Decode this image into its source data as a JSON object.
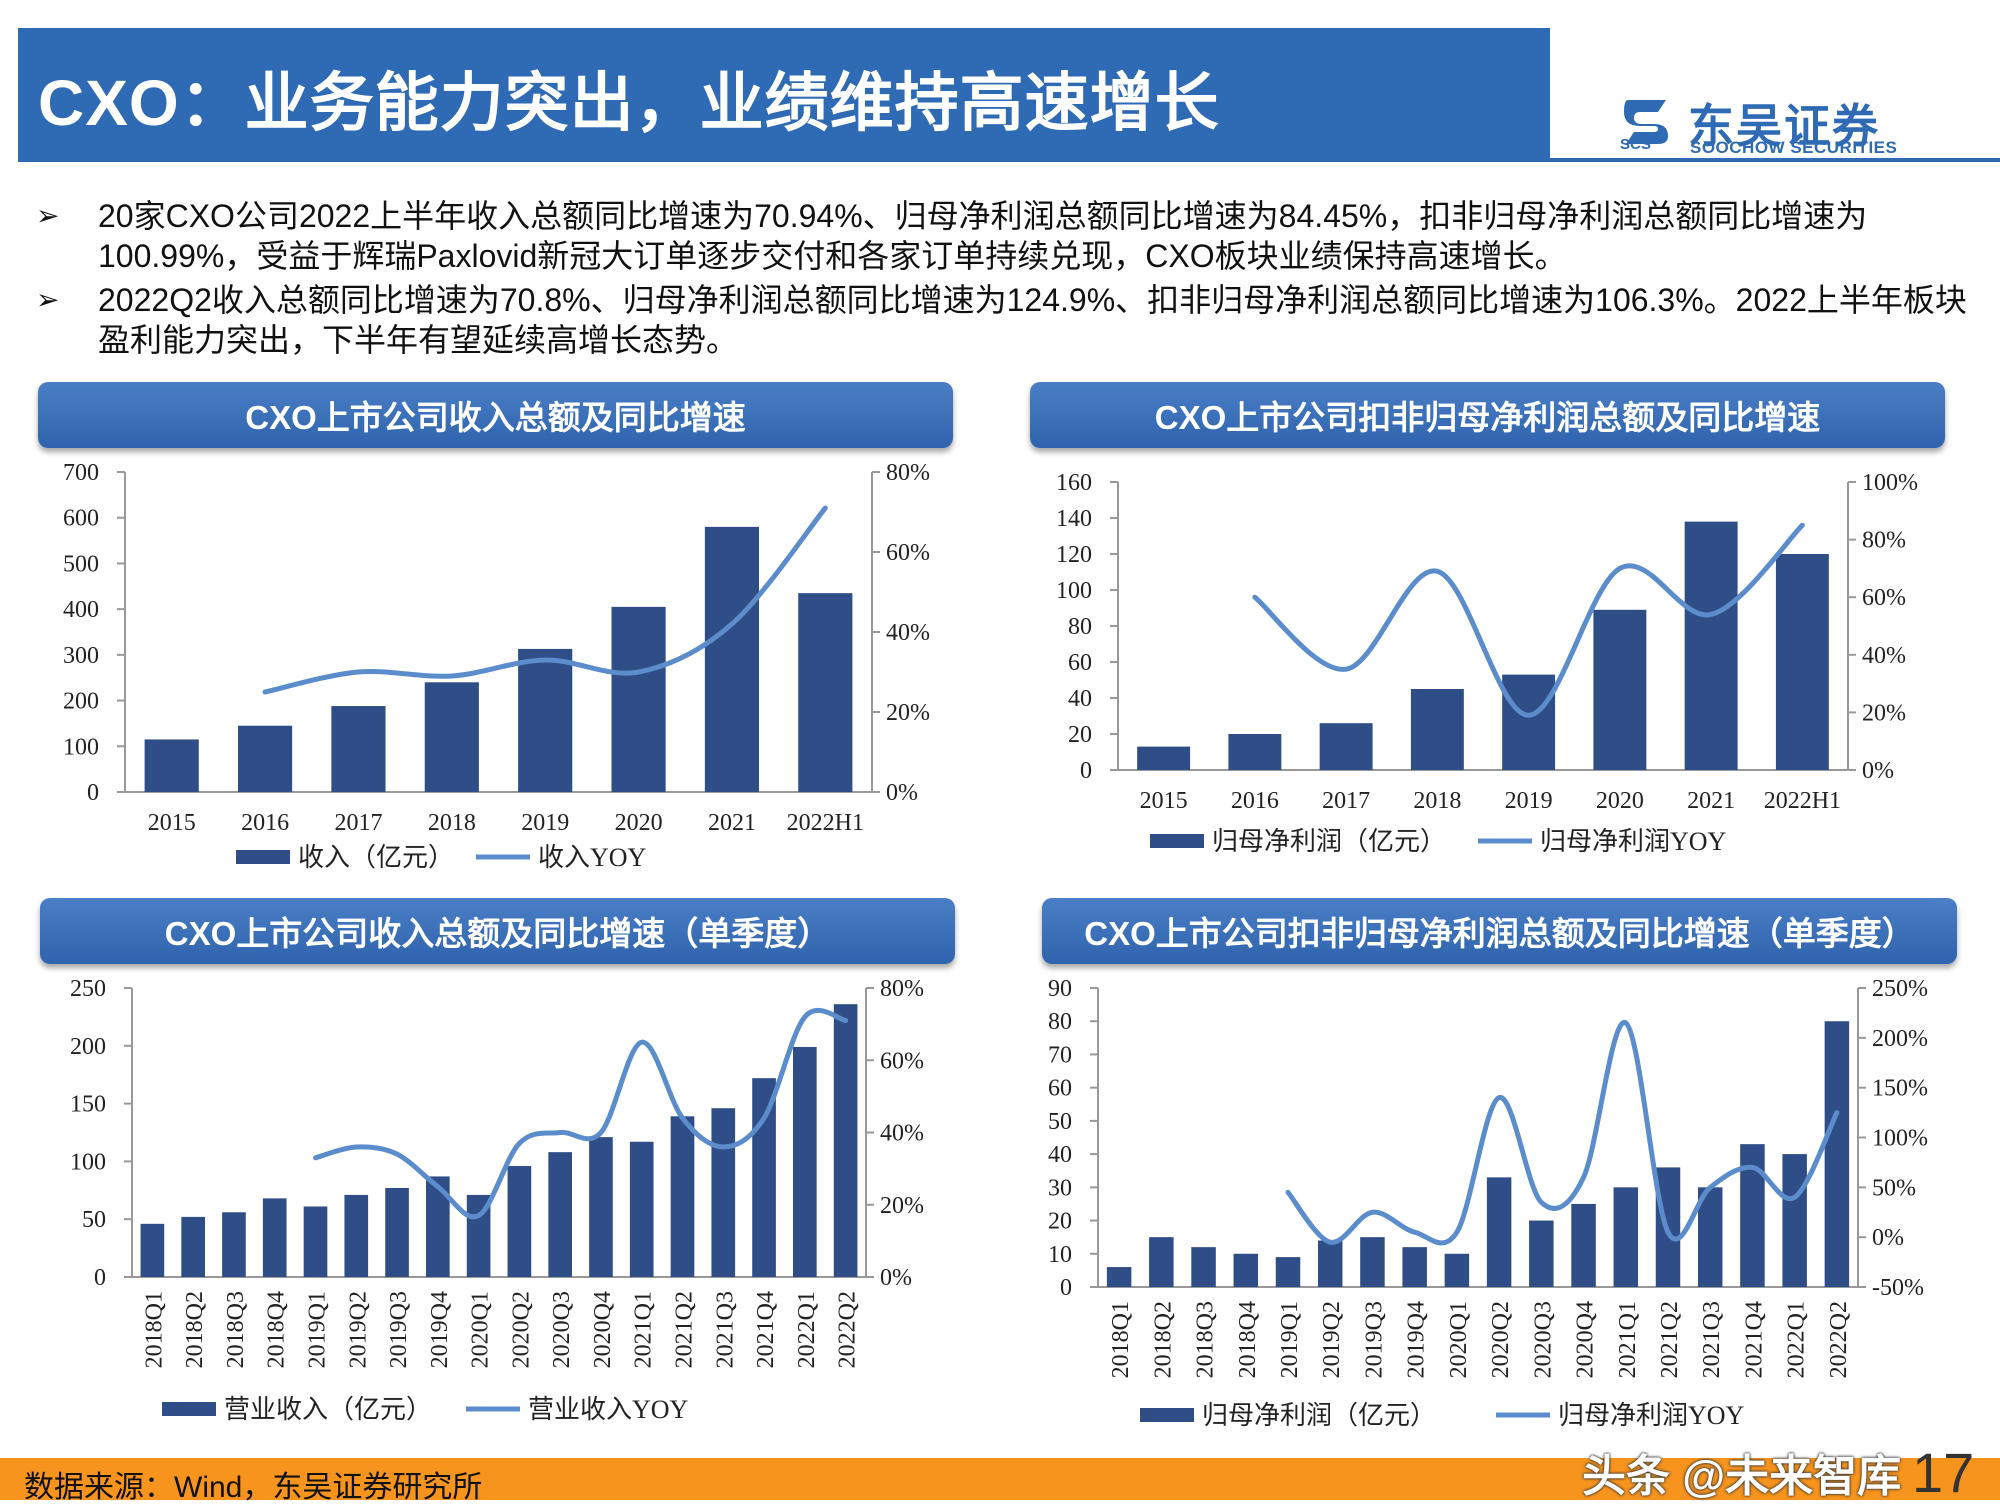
{
  "page": {
    "title": "CXO：业务能力突出，业绩维持高速增长",
    "logo_cn": "东吴证券",
    "logo_en": "SOOCHOW SECURITIES",
    "logo_mark": "SCS",
    "bullets": [
      "20家CXO公司2022上半年收入总额同比增速为70.94%、归母净利润总额同比增速为84.45%，扣非归母净利润总额同比增速为100.99%，受益于辉瑞Paxlovid新冠大订单逐步交付和各家订单持续兑现，CXO板块业绩保持高速增长。",
      "2022Q2收入总额同比增速为70.8%、归母净利润总额同比增速为124.9%、扣非归母净利润总额同比增速为106.3%。2022上半年板块盈利能力突出，下半年有望延续高增长态势。"
    ],
    "bullet_icon": "arrow-bullet-icon",
    "source": "数据来源：Wind，东吴证券研究所",
    "watermark": "头条 @未来智库",
    "page_number": "17",
    "colors": {
      "accent": "#2f6ab5",
      "bar": "#2f4d86",
      "line": "#5b8ccb",
      "footer": "#f7941d"
    }
  },
  "chart_data": [
    {
      "type": "bar",
      "title": "CXO上市公司收入总额及同比增速",
      "categories": [
        "2015",
        "2016",
        "2017",
        "2018",
        "2019",
        "2020",
        "2021",
        "2022H1"
      ],
      "series": [
        {
          "name": "收入（亿元）",
          "axis": "left",
          "type": "bar",
          "values": [
            115,
            145,
            188,
            240,
            313,
            405,
            580,
            435
          ]
        },
        {
          "name": "收入YOY",
          "axis": "right",
          "type": "line",
          "values": [
            null,
            0.25,
            0.3,
            0.29,
            0.33,
            0.3,
            0.42,
            0.71
          ]
        }
      ],
      "ylim_left": [
        0,
        700
      ],
      "yticks_left": [
        "0",
        "100",
        "200",
        "300",
        "400",
        "500",
        "600",
        "700"
      ],
      "ylim_right": [
        0,
        0.8
      ],
      "yticks_right": [
        "0%",
        "20%",
        "40%",
        "60%",
        "80%"
      ],
      "legend_position": "bottom"
    },
    {
      "type": "bar",
      "title": "CXO上市公司扣非归母净利润总额及同比增速",
      "categories": [
        "2015",
        "2016",
        "2017",
        "2018",
        "2019",
        "2020",
        "2021",
        "2022H1"
      ],
      "series": [
        {
          "name": "归母净利润（亿元）",
          "axis": "left",
          "type": "bar",
          "values": [
            13,
            20,
            26,
            45,
            53,
            89,
            138,
            120
          ]
        },
        {
          "name": "归母净利润YOY",
          "axis": "right",
          "type": "line",
          "values": [
            null,
            0.6,
            0.35,
            0.69,
            0.19,
            0.7,
            0.54,
            0.85
          ]
        }
      ],
      "ylim_left": [
        0,
        160
      ],
      "yticks_left": [
        "0",
        "20",
        "40",
        "60",
        "80",
        "100",
        "120",
        "140",
        "160"
      ],
      "ylim_right": [
        0,
        1.0
      ],
      "yticks_right": [
        "0%",
        "20%",
        "40%",
        "60%",
        "80%",
        "100%"
      ],
      "legend_position": "bottom"
    },
    {
      "type": "bar",
      "title": "CXO上市公司收入总额及同比增速（单季度）",
      "categories": [
        "2018Q1",
        "2018Q2",
        "2018Q3",
        "2018Q4",
        "2019Q1",
        "2019Q2",
        "2019Q3",
        "2019Q4",
        "2020Q1",
        "2020Q2",
        "2020Q3",
        "2020Q4",
        "2021Q1",
        "2021Q2",
        "2021Q3",
        "2021Q4",
        "2022Q1",
        "2022Q2"
      ],
      "series": [
        {
          "name": "营业收入（亿元）",
          "axis": "left",
          "type": "bar",
          "values": [
            46,
            52,
            56,
            68,
            61,
            71,
            77,
            87,
            71,
            96,
            108,
            121,
            117,
            139,
            146,
            172,
            199,
            236
          ]
        },
        {
          "name": "营业收入YOY",
          "axis": "right",
          "type": "line",
          "values": [
            null,
            null,
            null,
            null,
            0.33,
            0.36,
            0.34,
            0.25,
            0.17,
            0.37,
            0.4,
            0.4,
            0.65,
            0.44,
            0.36,
            0.44,
            0.72,
            0.71
          ]
        }
      ],
      "ylim_left": [
        0,
        250
      ],
      "yticks_left": [
        "0",
        "50",
        "100",
        "150",
        "200",
        "250"
      ],
      "ylim_right": [
        0,
        0.8
      ],
      "yticks_right": [
        "0%",
        "20%",
        "40%",
        "60%",
        "80%"
      ],
      "legend_position": "bottom"
    },
    {
      "type": "bar",
      "title": "CXO上市公司扣非归母净利润总额及同比增速（单季度）",
      "categories": [
        "2018Q1",
        "2018Q2",
        "2018Q3",
        "2018Q4",
        "2019Q1",
        "2019Q2",
        "2019Q3",
        "2019Q4",
        "2020Q1",
        "2020Q2",
        "2020Q3",
        "2020Q4",
        "2021Q1",
        "2021Q2",
        "2021Q3",
        "2021Q4",
        "2022Q1",
        "2022Q2"
      ],
      "series": [
        {
          "name": "归母净利润（亿元）",
          "axis": "left",
          "type": "bar",
          "values": [
            6,
            15,
            12,
            10,
            9,
            14,
            15,
            12,
            10,
            33,
            20,
            25,
            30,
            36,
            30,
            43,
            40,
            80
          ]
        },
        {
          "name": "归母净利润YOY",
          "axis": "right",
          "type": "line",
          "values": [
            null,
            null,
            null,
            null,
            0.45,
            -0.05,
            0.25,
            0.05,
            0.05,
            1.4,
            0.35,
            0.6,
            2.15,
            0.05,
            0.5,
            0.7,
            0.4,
            1.25
          ]
        }
      ],
      "ylim_left": [
        0,
        90
      ],
      "yticks_left": [
        "0",
        "10",
        "20",
        "30",
        "40",
        "50",
        "60",
        "70",
        "80",
        "90"
      ],
      "ylim_right": [
        -0.5,
        2.5
      ],
      "yticks_right": [
        "-50%",
        "0%",
        "50%",
        "100%",
        "150%",
        "200%",
        "250%"
      ],
      "legend_position": "bottom"
    }
  ]
}
